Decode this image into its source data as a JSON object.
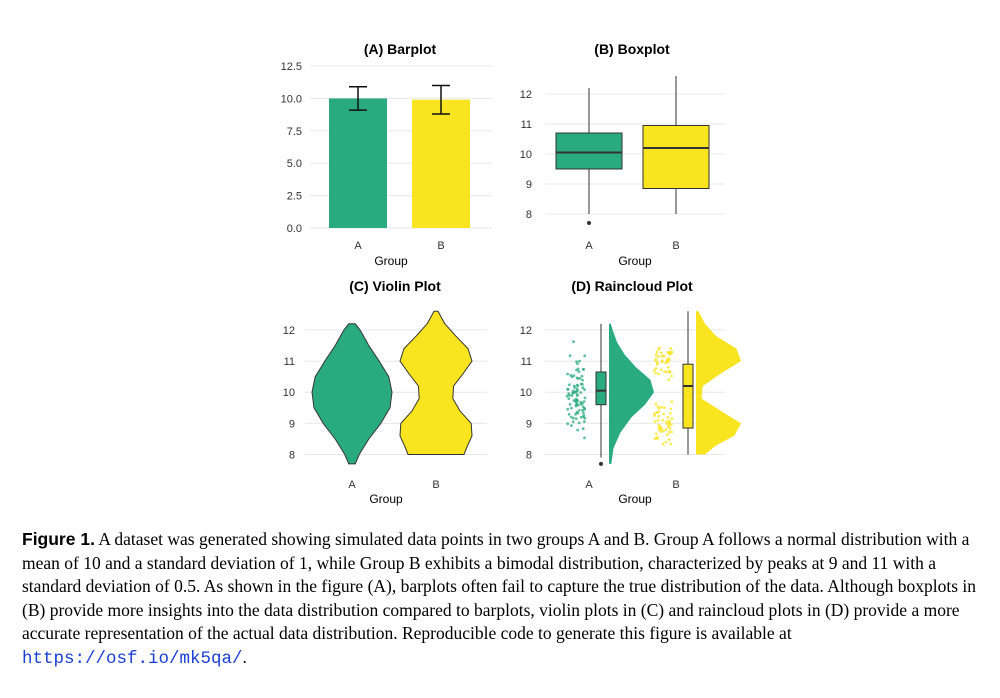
{
  "colors": {
    "group_a": "#2aab7f",
    "group_b": "#f8e41f",
    "outline": "#333333"
  },
  "chart_data": [
    {
      "type": "bar",
      "title": "(A) Barplot",
      "xlabel": "Group",
      "categories": [
        "A",
        "B"
      ],
      "values": [
        10.0,
        9.9
      ],
      "error_bars": [
        [
          9.1,
          10.9
        ],
        [
          8.8,
          11.0
        ]
      ],
      "ylim": [
        0,
        12.5
      ],
      "yticks": [
        "0.0",
        "2.5",
        "5.0",
        "7.5",
        "10.0",
        "12.5"
      ]
    },
    {
      "type": "box",
      "title": "(B) Boxplot",
      "xlabel": "Group",
      "categories": [
        "A",
        "B"
      ],
      "boxes": [
        {
          "min": 8.0,
          "q1": 9.5,
          "median": 10.05,
          "q3": 10.7,
          "max": 12.2,
          "outliers": [
            7.7
          ]
        },
        {
          "min": 8.0,
          "q1": 8.85,
          "median": 10.2,
          "q3": 10.95,
          "max": 12.6,
          "outliers": []
        }
      ],
      "ylim": [
        7.4,
        12.8
      ],
      "yticks": [
        "8",
        "9",
        "10",
        "11",
        "12"
      ]
    },
    {
      "type": "violin",
      "title": "(C) Violin Plot",
      "xlabel": "Group",
      "categories": [
        "A",
        "B"
      ],
      "ylim": [
        7.6,
        12.8
      ],
      "yticks": [
        "8",
        "9",
        "10",
        "11",
        "12"
      ],
      "densities": [
        {
          "y": [
            7.7,
            8.0,
            8.5,
            9.0,
            9.5,
            10.0,
            10.5,
            11.0,
            11.5,
            12.0,
            12.2
          ],
          "w": [
            0.08,
            0.18,
            0.42,
            0.72,
            0.95,
            1.0,
            0.92,
            0.68,
            0.42,
            0.2,
            0.08
          ]
        },
        {
          "y": [
            8.0,
            8.2,
            8.6,
            9.0,
            9.4,
            9.8,
            10.2,
            10.6,
            11.0,
            11.4,
            11.8,
            12.2,
            12.6
          ],
          "w": [
            0.7,
            0.76,
            0.9,
            0.88,
            0.6,
            0.42,
            0.44,
            0.68,
            0.9,
            0.8,
            0.5,
            0.22,
            0.05
          ]
        }
      ]
    },
    {
      "type": "raincloud",
      "title": "(D) Raincloud Plot",
      "xlabel": "Group",
      "categories": [
        "A",
        "B"
      ],
      "ylim": [
        7.6,
        12.8
      ],
      "yticks": [
        "8",
        "9",
        "10",
        "11",
        "12"
      ],
      "boxes": [
        {
          "min": 7.9,
          "q1": 9.6,
          "median": 10.05,
          "q3": 10.65,
          "max": 12.2,
          "outliers": [
            7.7
          ]
        },
        {
          "min": 8.0,
          "q1": 8.85,
          "median": 10.2,
          "q3": 10.9,
          "max": 12.6,
          "outliers": []
        }
      ],
      "clouds": [
        {
          "y": [
            7.7,
            8.2,
            8.7,
            9.2,
            9.6,
            10.0,
            10.4,
            10.8,
            11.2,
            11.6,
            12.0,
            12.2
          ],
          "w": [
            0.05,
            0.1,
            0.25,
            0.5,
            0.8,
            1.0,
            0.92,
            0.6,
            0.35,
            0.18,
            0.08,
            0.04
          ]
        },
        {
          "y": [
            8.0,
            8.3,
            8.6,
            9.0,
            9.4,
            9.8,
            10.2,
            10.6,
            11.0,
            11.4,
            11.8,
            12.2,
            12.6
          ],
          "w": [
            0.2,
            0.45,
            0.85,
            1.0,
            0.55,
            0.12,
            0.15,
            0.55,
            1.0,
            0.9,
            0.45,
            0.2,
            0.05
          ]
        }
      ]
    }
  ],
  "caption": {
    "label": "Figure 1.",
    "text": " A dataset was generated showing simulated data points in two groups A and B. Group A follows a normal distribution with a mean of 10 and a standard deviation of 1, while Group B exhibits a bimodal distribution, characterized by peaks at 9 and 11 with a standard deviation of 0.5. As shown in the figure (A), barplots often fail to capture the true distribution of the data. Although boxplots in (B) provide more insights into the data distribution compared to barplots, violin plots in (C) and raincloud plots in (D) provide a more accurate representation of the actual data distribution. Reproducible code to generate this figure is available at ",
    "url": "https://osf.io/mk5qa/",
    "end": "."
  }
}
